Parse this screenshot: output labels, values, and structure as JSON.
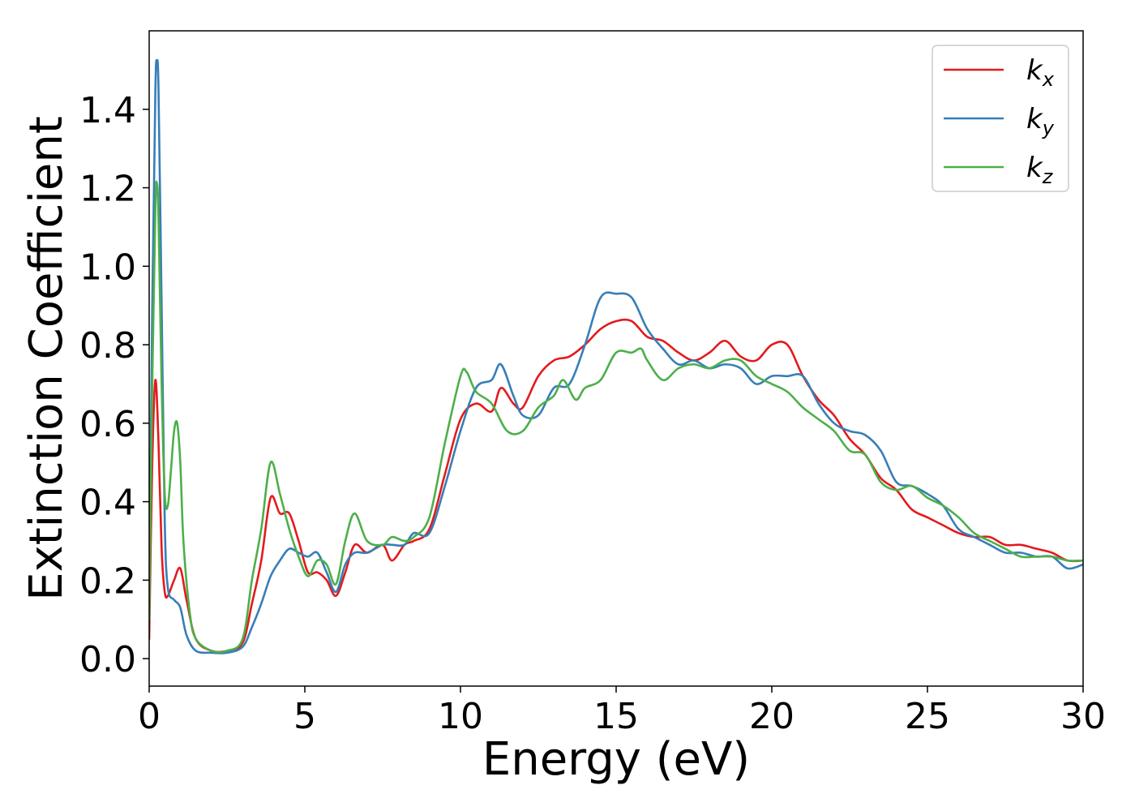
{
  "chart_data": {
    "type": "line",
    "xlabel": "Energy (eV)",
    "ylabel": "Extinction Coefficient",
    "xlim": [
      0,
      30
    ],
    "ylim": [
      -0.07,
      1.6
    ],
    "xticks": [
      0,
      5,
      10,
      15,
      20,
      25,
      30
    ],
    "xtick_labels": [
      "0",
      "5",
      "10",
      "15",
      "20",
      "25",
      "30"
    ],
    "yticks": [
      0.0,
      0.2,
      0.4,
      0.6,
      0.8,
      1.0,
      1.2,
      1.4
    ],
    "ytick_labels": [
      "0.0",
      "0.2",
      "0.4",
      "0.6",
      "0.8",
      "1.0",
      "1.2",
      "1.4"
    ],
    "grid": false,
    "legend_position": "top-right",
    "series": [
      {
        "name": "k",
        "subscript": "x",
        "color": "#e41a1c",
        "x": [
          0,
          0.1,
          0.2,
          0.3,
          0.4,
          0.5,
          0.6,
          0.8,
          1.0,
          1.2,
          1.5,
          2.0,
          2.5,
          3.0,
          3.3,
          3.6,
          3.9,
          4.2,
          4.5,
          4.8,
          5.1,
          5.4,
          5.7,
          6.0,
          6.3,
          6.6,
          7.0,
          7.5,
          7.8,
          8.2,
          8.5,
          9.0,
          9.5,
          10.0,
          10.5,
          11.0,
          11.3,
          11.7,
          12.0,
          12.5,
          13.0,
          13.5,
          14.0,
          14.5,
          15.0,
          15.5,
          16.0,
          16.5,
          17.0,
          17.5,
          18.0,
          18.5,
          19.0,
          19.5,
          20.0,
          20.5,
          21.0,
          21.5,
          22.0,
          22.5,
          23.0,
          23.5,
          24.0,
          24.5,
          25.0,
          25.5,
          26.0,
          26.5,
          27.0,
          27.5,
          28.0,
          28.5,
          29.0,
          29.5,
          30.0
        ],
        "y": [
          0.05,
          0.5,
          0.71,
          0.55,
          0.28,
          0.17,
          0.16,
          0.2,
          0.23,
          0.15,
          0.05,
          0.02,
          0.02,
          0.04,
          0.14,
          0.25,
          0.41,
          0.37,
          0.37,
          0.3,
          0.22,
          0.22,
          0.2,
          0.16,
          0.22,
          0.29,
          0.27,
          0.29,
          0.25,
          0.29,
          0.3,
          0.33,
          0.47,
          0.61,
          0.65,
          0.63,
          0.69,
          0.65,
          0.64,
          0.72,
          0.76,
          0.77,
          0.8,
          0.84,
          0.86,
          0.86,
          0.82,
          0.81,
          0.78,
          0.76,
          0.78,
          0.81,
          0.77,
          0.76,
          0.8,
          0.8,
          0.72,
          0.66,
          0.62,
          0.56,
          0.52,
          0.46,
          0.43,
          0.38,
          0.36,
          0.34,
          0.32,
          0.31,
          0.31,
          0.29,
          0.29,
          0.28,
          0.27,
          0.25,
          0.25
        ]
      },
      {
        "name": "k",
        "subscript": "y",
        "color": "#377eb8",
        "x": [
          0,
          0.1,
          0.2,
          0.25,
          0.3,
          0.4,
          0.5,
          0.6,
          0.8,
          1.0,
          1.2,
          1.5,
          2.0,
          2.5,
          3.0,
          3.3,
          3.6,
          3.9,
          4.2,
          4.5,
          4.8,
          5.1,
          5.4,
          5.7,
          6.0,
          6.3,
          6.6,
          7.0,
          7.5,
          7.8,
          8.2,
          8.5,
          9.0,
          9.5,
          10.0,
          10.5,
          11.0,
          11.3,
          11.7,
          12.0,
          12.5,
          13.0,
          13.5,
          14.0,
          14.5,
          15.0,
          15.5,
          16.0,
          16.5,
          17.0,
          17.5,
          18.0,
          18.5,
          19.0,
          19.5,
          20.0,
          20.5,
          21.0,
          21.5,
          22.0,
          22.5,
          23.0,
          23.5,
          24.0,
          24.5,
          25.0,
          25.5,
          26.0,
          26.5,
          27.0,
          27.5,
          28.0,
          28.5,
          29.0,
          29.5,
          30.0
        ],
        "y": [
          0.1,
          0.9,
          1.45,
          1.52,
          1.45,
          0.9,
          0.35,
          0.18,
          0.15,
          0.13,
          0.06,
          0.02,
          0.015,
          0.015,
          0.03,
          0.08,
          0.14,
          0.21,
          0.25,
          0.28,
          0.27,
          0.26,
          0.27,
          0.22,
          0.17,
          0.24,
          0.27,
          0.27,
          0.29,
          0.29,
          0.29,
          0.32,
          0.32,
          0.44,
          0.58,
          0.69,
          0.71,
          0.75,
          0.67,
          0.62,
          0.62,
          0.69,
          0.7,
          0.8,
          0.92,
          0.93,
          0.92,
          0.84,
          0.79,
          0.75,
          0.76,
          0.74,
          0.75,
          0.74,
          0.7,
          0.72,
          0.72,
          0.72,
          0.65,
          0.6,
          0.58,
          0.57,
          0.53,
          0.45,
          0.44,
          0.42,
          0.39,
          0.33,
          0.31,
          0.29,
          0.27,
          0.27,
          0.26,
          0.26,
          0.23,
          0.24
        ]
      },
      {
        "name": "k",
        "subscript": "z",
        "color": "#4daf4a",
        "x": [
          0,
          0.1,
          0.2,
          0.25,
          0.3,
          0.4,
          0.5,
          0.6,
          0.7,
          0.8,
          0.9,
          1.0,
          1.1,
          1.3,
          1.5,
          2.0,
          2.5,
          3.0,
          3.3,
          3.6,
          3.9,
          4.2,
          4.5,
          4.8,
          5.1,
          5.4,
          5.7,
          6.0,
          6.3,
          6.6,
          7.0,
          7.5,
          7.8,
          8.2,
          8.5,
          9.0,
          9.5,
          10.0,
          10.2,
          10.5,
          11.0,
          11.5,
          12.0,
          12.5,
          13.0,
          13.3,
          13.7,
          14.0,
          14.5,
          15.0,
          15.5,
          15.8,
          16.0,
          16.5,
          17.0,
          17.5,
          18.0,
          18.5,
          19.0,
          19.5,
          20.0,
          20.5,
          21.0,
          21.5,
          22.0,
          22.5,
          23.0,
          23.5,
          24.0,
          24.5,
          25.0,
          25.5,
          26.0,
          26.5,
          27.0,
          27.5,
          28.0,
          28.5,
          29.0,
          29.5,
          30.0
        ],
        "y": [
          0.1,
          0.7,
          1.15,
          1.21,
          1.12,
          0.7,
          0.42,
          0.39,
          0.48,
          0.58,
          0.6,
          0.5,
          0.3,
          0.12,
          0.05,
          0.02,
          0.02,
          0.05,
          0.2,
          0.33,
          0.5,
          0.42,
          0.33,
          0.26,
          0.21,
          0.25,
          0.24,
          0.19,
          0.3,
          0.37,
          0.3,
          0.29,
          0.31,
          0.3,
          0.31,
          0.36,
          0.55,
          0.72,
          0.73,
          0.68,
          0.65,
          0.58,
          0.58,
          0.64,
          0.67,
          0.71,
          0.66,
          0.69,
          0.71,
          0.78,
          0.78,
          0.79,
          0.76,
          0.71,
          0.74,
          0.75,
          0.74,
          0.76,
          0.76,
          0.72,
          0.7,
          0.68,
          0.64,
          0.61,
          0.58,
          0.53,
          0.52,
          0.45,
          0.43,
          0.44,
          0.41,
          0.39,
          0.36,
          0.32,
          0.3,
          0.28,
          0.26,
          0.26,
          0.26,
          0.25,
          0.25
        ]
      }
    ]
  }
}
